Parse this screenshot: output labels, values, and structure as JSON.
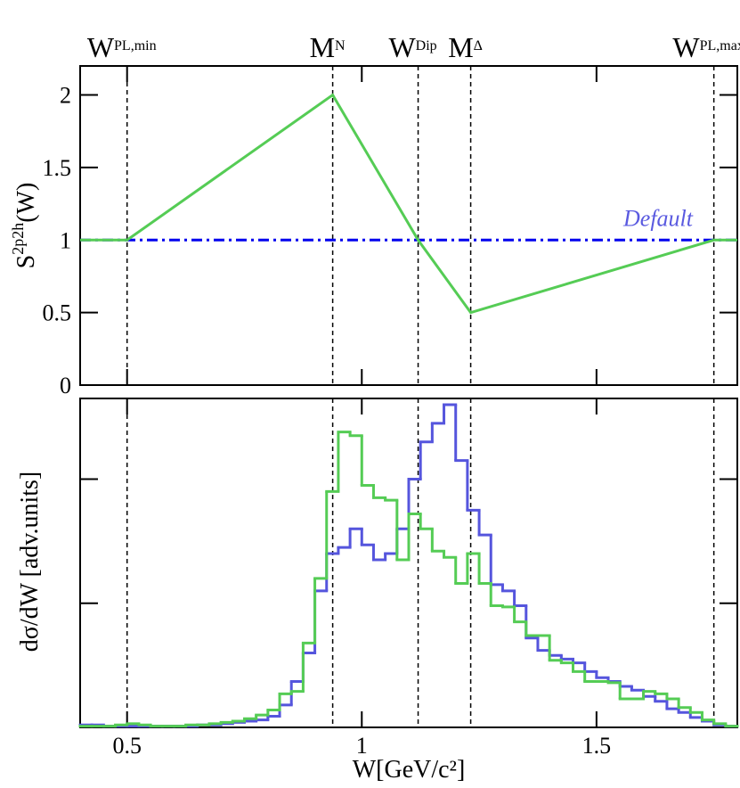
{
  "chart_data": [
    {
      "type": "line",
      "ylabel": [
        "S",
        "2p2h",
        "(W)"
      ],
      "xlim": [
        0.4,
        1.8
      ],
      "ylim": [
        0,
        2.2
      ],
      "yticks": [
        0,
        0.5,
        1,
        1.5,
        2
      ],
      "markers": [
        {
          "x": 0.5,
          "label": "W",
          "sub": "PL,min"
        },
        {
          "x": 0.938,
          "label": "M",
          "sub": "N"
        },
        {
          "x": 1.12,
          "label": "W",
          "sub": "Dip"
        },
        {
          "x": 1.232,
          "label": "M",
          "sub": "Δ"
        },
        {
          "x": 1.75,
          "label": "W",
          "sub": "PL,max"
        }
      ],
      "series": [
        {
          "name": "Default",
          "color": "#0000ee",
          "style": "dashdot",
          "x": [
            0.4,
            1.8
          ],
          "values": [
            1,
            1
          ]
        },
        {
          "color": "#55cc55",
          "style": "solid",
          "x": [
            0.4,
            0.5,
            0.938,
            1.12,
            1.232,
            1.75,
            1.8
          ],
          "values": [
            1,
            1,
            2,
            1,
            0.5,
            1,
            1
          ]
        }
      ]
    },
    {
      "type": "histogram",
      "ylabel": "dσ/dW [adv.units]",
      "xlabel": "W[GeV/c²]",
      "xlim": [
        0.4,
        1.8
      ],
      "xticks": [
        0.5,
        1,
        1.5
      ],
      "ylim": [
        0,
        2.65
      ],
      "yticks": [
        1,
        2
      ],
      "bins": [
        0.4,
        0.425,
        0.45,
        0.475,
        0.5,
        0.525,
        0.55,
        0.575,
        0.6,
        0.625,
        0.65,
        0.675,
        0.7,
        0.725,
        0.75,
        0.775,
        0.8,
        0.825,
        0.85,
        0.875,
        0.9,
        0.925,
        0.95,
        0.975,
        1.0,
        1.025,
        1.05,
        1.075,
        1.1,
        1.125,
        1.15,
        1.175,
        1.2,
        1.225,
        1.25,
        1.275,
        1.3,
        1.325,
        1.35,
        1.375,
        1.4,
        1.425,
        1.45,
        1.475,
        1.5,
        1.525,
        1.55,
        1.575,
        1.6,
        1.625,
        1.65,
        1.675,
        1.7,
        1.725,
        1.75,
        1.775,
        1.8
      ],
      "series": [
        {
          "color": "#5555dd",
          "values": [
            0.02,
            0.02,
            0.01,
            0.01,
            0.01,
            0.01,
            0.01,
            0.01,
            0.01,
            0.01,
            0.02,
            0.02,
            0.03,
            0.04,
            0.05,
            0.06,
            0.09,
            0.18,
            0.37,
            0.6,
            1.1,
            1.4,
            1.45,
            1.6,
            1.47,
            1.35,
            1.4,
            1.6,
            2.0,
            2.3,
            2.45,
            2.6,
            2.15,
            1.75,
            1.55,
            1.15,
            1.1,
            0.98,
            0.72,
            0.62,
            0.58,
            0.55,
            0.52,
            0.45,
            0.4,
            0.37,
            0.33,
            0.3,
            0.25,
            0.21,
            0.15,
            0.12,
            0.08,
            0.05,
            0.02,
            0.01
          ]
        },
        {
          "color": "#55cc55",
          "values": [
            0.01,
            0.01,
            0.01,
            0.02,
            0.03,
            0.02,
            0.01,
            0.01,
            0.01,
            0.02,
            0.02,
            0.03,
            0.04,
            0.05,
            0.07,
            0.1,
            0.14,
            0.27,
            0.29,
            0.68,
            1.2,
            1.9,
            2.38,
            2.35,
            1.95,
            1.85,
            1.83,
            1.35,
            1.72,
            1.6,
            1.42,
            1.37,
            1.16,
            1.4,
            1.16,
            0.98,
            0.97,
            0.85,
            0.74,
            0.74,
            0.54,
            0.52,
            0.45,
            0.37,
            0.37,
            0.36,
            0.23,
            0.23,
            0.29,
            0.27,
            0.23,
            0.16,
            0.12,
            0.06,
            0.03,
            0.01
          ]
        }
      ]
    }
  ]
}
